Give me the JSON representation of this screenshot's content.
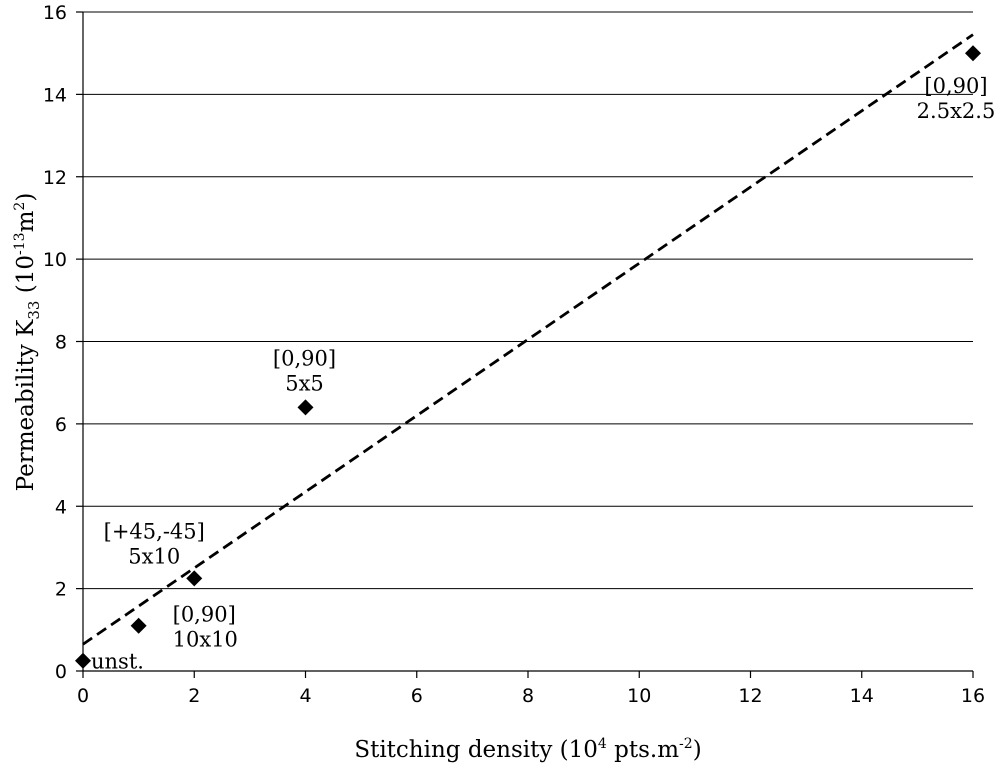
{
  "chart_data": {
    "type": "scatter",
    "title": "",
    "xlabel": {
      "main": "Stitching density (10",
      "sup1": "4",
      "mid": " pts.m",
      "sup2": "-2",
      "end": ")"
    },
    "ylabel": {
      "main": "Permeability K",
      "sub": "33",
      "mid": " (10",
      "sup1": "-13",
      "mid2": "m",
      "sup2": "2",
      "end": ")"
    },
    "xlim": [
      0,
      16
    ],
    "ylim": [
      0,
      16
    ],
    "xticks": [
      0,
      2,
      4,
      6,
      8,
      10,
      12,
      14,
      16
    ],
    "yticks": [
      0,
      2,
      4,
      6,
      8,
      10,
      12,
      14,
      16
    ],
    "grid": "horizontal",
    "marker": "diamond",
    "marker_color": "#000000",
    "points": [
      {
        "x": 0,
        "y": 0.25,
        "label": [
          "unst."
        ]
      },
      {
        "x": 1,
        "y": 1.1,
        "label": [
          "[0,90]",
          "10x10"
        ]
      },
      {
        "x": 2,
        "y": 2.25,
        "label": [
          "[+45,-45]",
          "5x10"
        ]
      },
      {
        "x": 4,
        "y": 6.4,
        "label": [
          "[0,90]",
          "5x5"
        ]
      },
      {
        "x": 16,
        "y": 15.0,
        "label": [
          "[0,90]",
          "2.5x2.5"
        ]
      }
    ],
    "trendline": {
      "style": "dashed",
      "x": [
        0,
        16
      ],
      "y": [
        0.65,
        15.45
      ]
    }
  }
}
